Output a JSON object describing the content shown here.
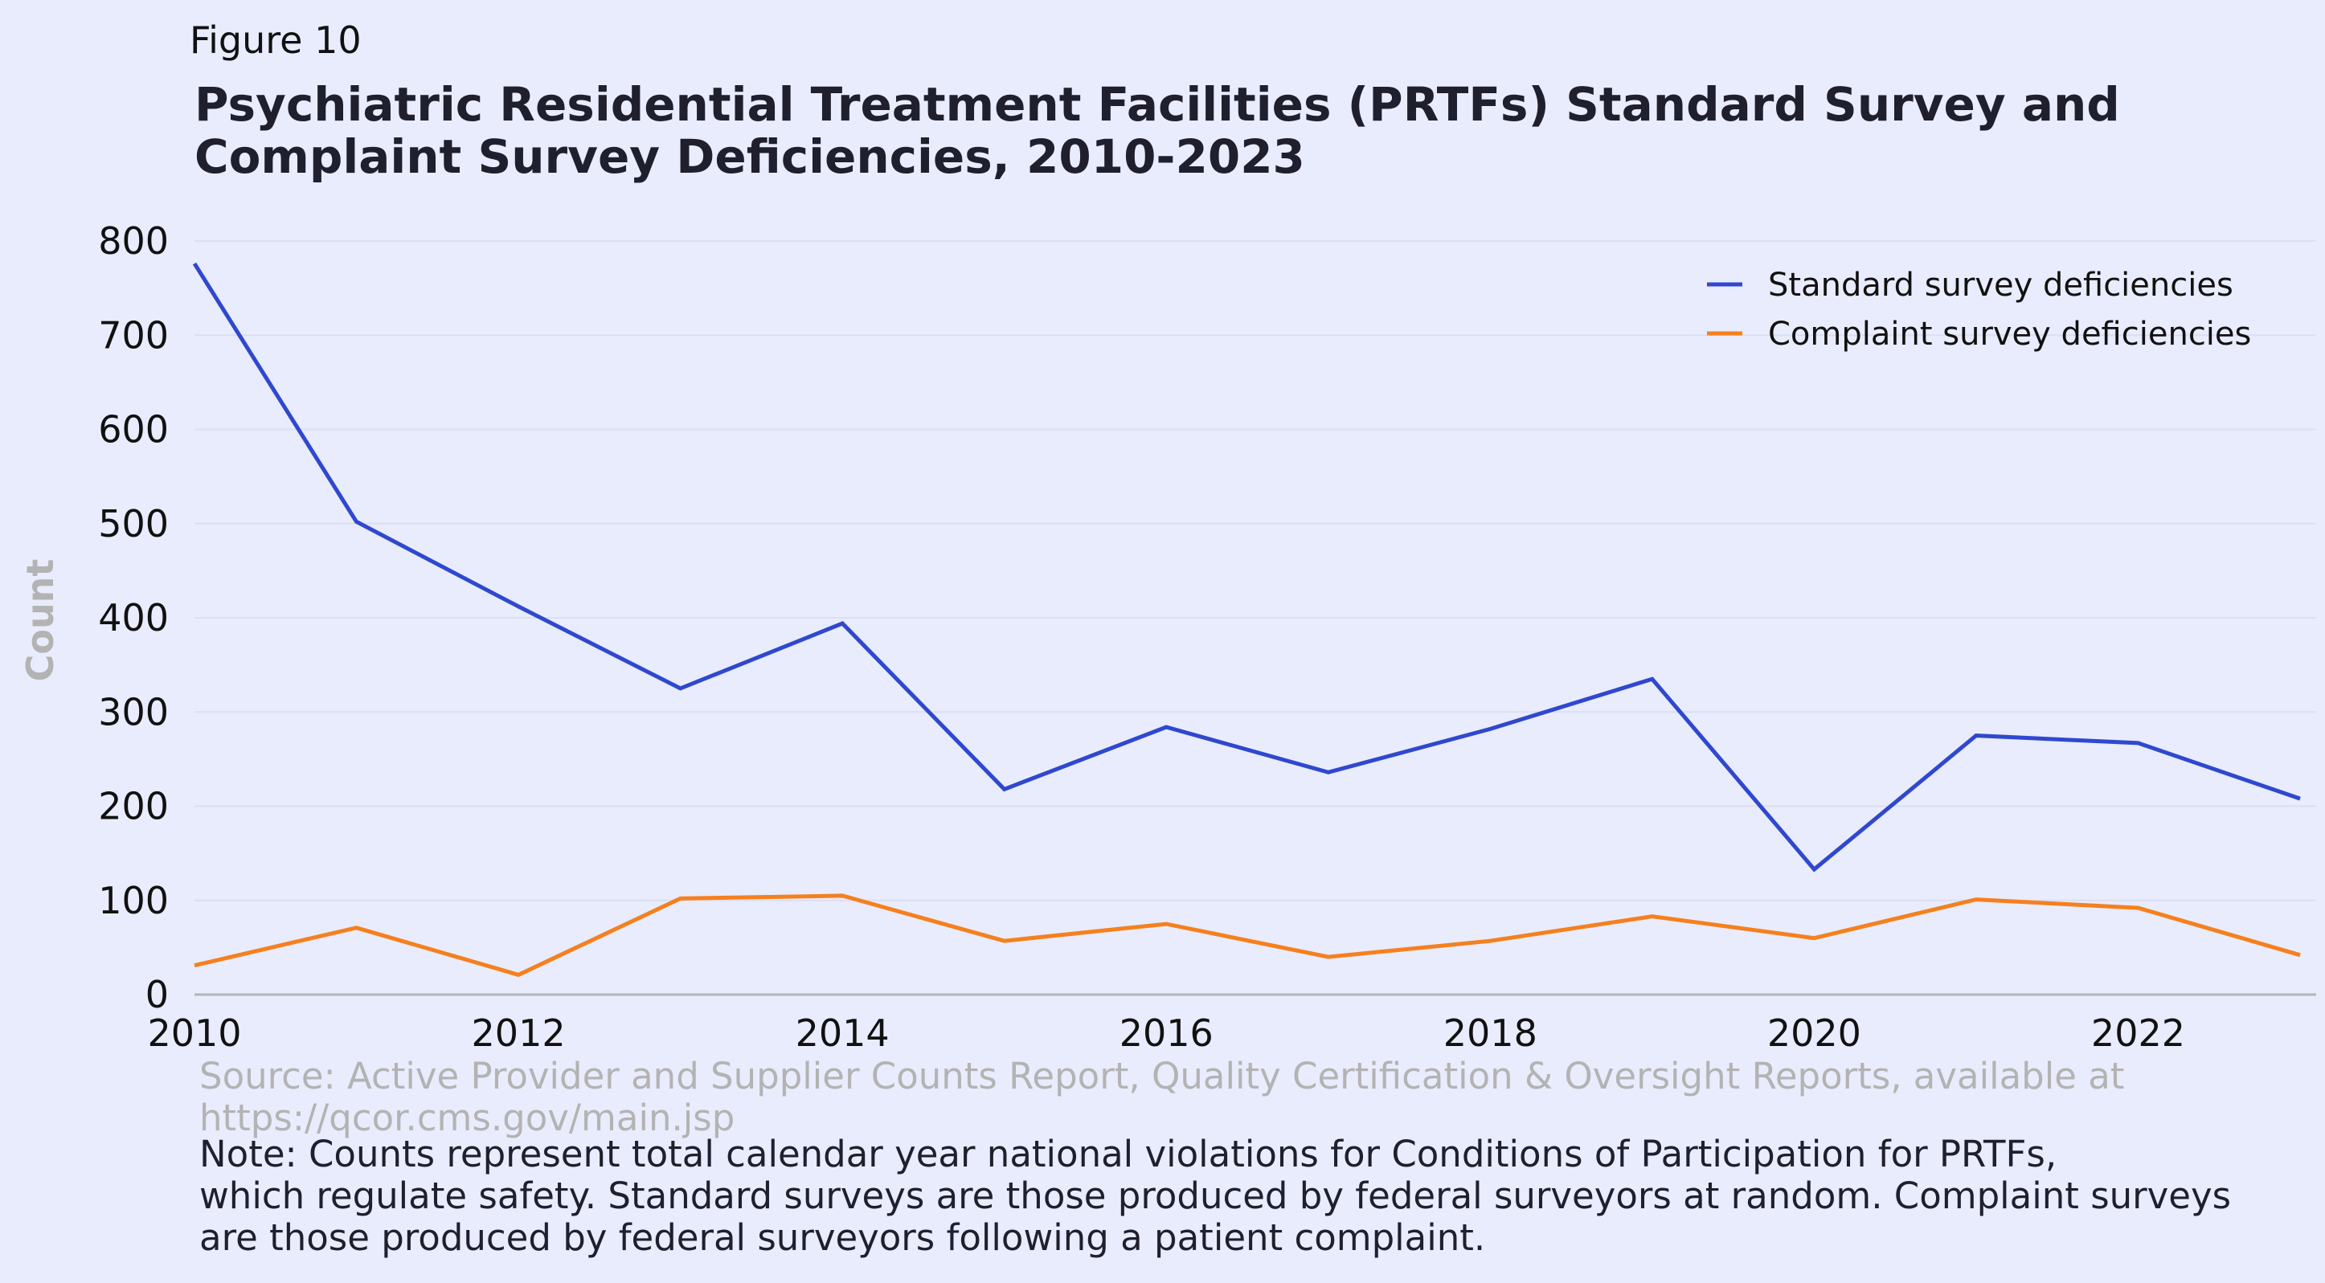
{
  "figure_label": "Figure 10",
  "title_lines": [
    "Psychiatric Residential Treatment Facilities (PRTFs) Standard Survey and",
    "Complaint Survey Deficiencies, 2010-2023"
  ],
  "source_lines": [
    "Source: Active Provider and Supplier Counts Report, Quality Certification & Oversight Reports, available at",
    "https://qcor.cms.gov/main.jsp"
  ],
  "note_lines": [
    "Note: Counts represent total calendar year national violations for Conditions of Participation for PRTFs,",
    "which regulate safety. Standard surveys are those produced by federal surveyors at random. Complaint surveys",
    "are those produced by federal surveyors following a patient complaint."
  ],
  "chart_data": {
    "type": "line",
    "title": "Psychiatric Residential Treatment Facilities (PRTFs) Standard Survey and Complaint Survey Deficiencies, 2010-2023",
    "xlabel": "",
    "ylabel": "Count",
    "x": [
      2010,
      2011,
      2012,
      2013,
      2014,
      2015,
      2016,
      2017,
      2018,
      2019,
      2020,
      2021,
      2022,
      2023
    ],
    "xlim": [
      2010,
      2023
    ],
    "ylim": [
      0,
      800
    ],
    "x_ticks": [
      "2010",
      "2012",
      "2014",
      "2016",
      "2018",
      "2020",
      "2022"
    ],
    "y_ticks": [
      "0",
      "100",
      "200",
      "300",
      "400",
      "500",
      "600",
      "700",
      "800"
    ],
    "grid": "horizontal",
    "legend_position": "top-right",
    "series": [
      {
        "name": "Standard survey deficiencies",
        "color": "#2f48cf",
        "values": [
          776,
          502,
          412,
          325,
          394,
          218,
          284,
          236,
          282,
          335,
          133,
          275,
          267,
          208
        ]
      },
      {
        "name": "Complaint survey deficiencies",
        "color": "#f5801e",
        "values": [
          31,
          71,
          21,
          102,
          105,
          57,
          75,
          40,
          57,
          83,
          60,
          101,
          92,
          42
        ]
      }
    ]
  }
}
